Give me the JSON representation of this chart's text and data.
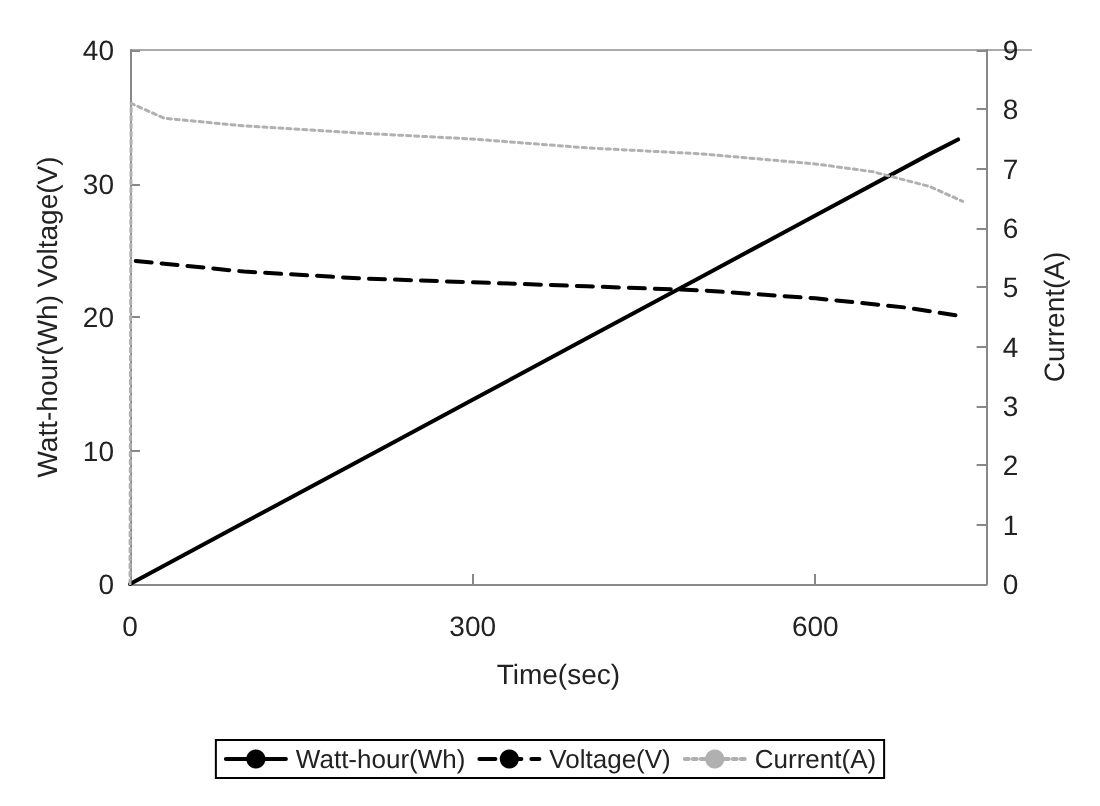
{
  "chart_data": {
    "type": "line",
    "xlabel": "Time(sec)",
    "ylabel": "Watt-hour(Wh) Voltage(V)",
    "y2label": "Current(A)",
    "xlim": [
      0,
      750
    ],
    "xticks": [
      0,
      300,
      600
    ],
    "ylim": [
      0,
      40
    ],
    "yticks": [
      0,
      10,
      20,
      30,
      40
    ],
    "y2lim": [
      0,
      9
    ],
    "y2ticks": [
      0,
      1,
      2,
      3,
      4,
      5,
      6,
      7,
      8,
      9
    ],
    "grid": false,
    "legend": "bottom",
    "marker": "none",
    "series": [
      {
        "name": "Watt-hour(Wh)",
        "color": "#000000",
        "line_style": "solid",
        "x": [
          0,
          100,
          200,
          300,
          400,
          500,
          600,
          700,
          725
        ],
        "values": [
          0,
          4.6,
          9.2,
          13.8,
          18.4,
          23,
          27.6,
          32.2,
          33.3
        ]
      },
      {
        "name": "Voltage(V)",
        "color": "#000000",
        "line_style": "dashed",
        "x": [
          5,
          100,
          200,
          300,
          400,
          500,
          600,
          680,
          725
        ],
        "values": [
          24.2,
          23.4,
          22.9,
          22.6,
          22.3,
          22,
          21.4,
          20.7,
          20.1
        ]
      },
      {
        "name": "Current(A)",
        "color": "#b0b0b0",
        "line_style": "dotted",
        "axis": "y2",
        "x": [
          0,
          1,
          30,
          100,
          200,
          300,
          400,
          500,
          600,
          650,
          700,
          729
        ],
        "values": [
          0,
          8.1,
          7.85,
          7.72,
          7.6,
          7.5,
          7.35,
          7.25,
          7.08,
          6.95,
          6.7,
          6.45
        ]
      }
    ]
  }
}
